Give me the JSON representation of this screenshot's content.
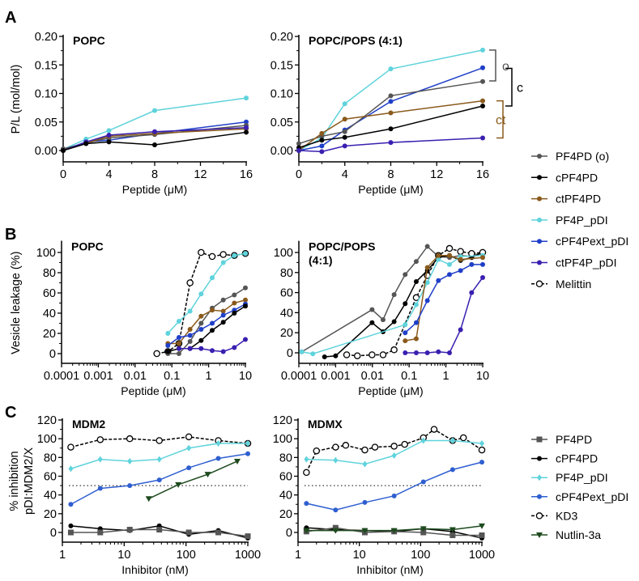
{
  "panels": {
    "a": "A",
    "b": "B",
    "c": "C"
  },
  "colors": {
    "PF4PD": "#555555",
    "cPF4PD": "#000000",
    "ctPF4PD": "#8a5a1c",
    "PF4P_pDI": "#5fd3dc",
    "cPF4Pext_pDI": "#1f3fc8",
    "ctPF4P_pDI": "#3a1fb0",
    "Melittin": "#000000",
    "KD3": "#000000",
    "Nutlin-3a": "#1e4a1e",
    "cPF4Pext_pDI_C": "#2f5fd0"
  },
  "legend_ab": [
    "PF4PD (o)",
    "cPF4PD",
    "ctPF4PD",
    "PF4P_pDI",
    "cPF4Pext_pDI",
    "ctPF4P_pDI",
    "Melittin"
  ],
  "legend_c": [
    "PF4PD",
    "cPF4PD",
    "PF4P_pDI",
    "cPF4Pext_pDI",
    "KD3",
    "Nutlin-3a"
  ],
  "chart_data": [
    {
      "id": "A1",
      "type": "line",
      "title": "POPC",
      "xlabel": "Peptide (μM)",
      "ylabel": "P/L (mol/mol)",
      "xscale": "linear",
      "xlim": [
        0,
        16
      ],
      "ylim": [
        -0.02,
        0.2
      ],
      "xticks": [
        "0",
        "4",
        "8",
        "12",
        "16"
      ],
      "yticks": [
        "0.00",
        "0.05",
        "0.10",
        "0.15",
        "0.20"
      ],
      "x": [
        0,
        2,
        4,
        8,
        16
      ],
      "series": [
        {
          "key": "PF4P_pDI",
          "values": [
            0.002,
            0.02,
            0.035,
            0.07,
            0.092
          ]
        },
        {
          "key": "cPF4Pext_pDI",
          "values": [
            0,
            0.015,
            0.018,
            0.03,
            0.05
          ]
        },
        {
          "key": "PF4PD",
          "values": [
            0.003,
            0.013,
            0.022,
            0.028,
            0.044
          ]
        },
        {
          "key": "ctPF4PD",
          "values": [
            0,
            0.013,
            0.025,
            0.03,
            0.038
          ]
        },
        {
          "key": "ctPF4P_pDI",
          "values": [
            0,
            0.015,
            0.027,
            0.033,
            0.04
          ]
        },
        {
          "key": "cPF4PD",
          "values": [
            0,
            0.012,
            0.015,
            0.01,
            0.032
          ]
        }
      ]
    },
    {
      "id": "A2",
      "type": "line",
      "title": "POPC/POPS (4:1)",
      "xlabel": "Peptide (μM)",
      "ylabel": "",
      "xscale": "linear",
      "xlim": [
        0,
        16
      ],
      "ylim": [
        -0.02,
        0.2
      ],
      "xticks": [
        "0",
        "4",
        "8",
        "12",
        "16"
      ],
      "yticks": [
        "0.00",
        "0.05",
        "0.10",
        "0.15",
        "0.20"
      ],
      "x": [
        0,
        2,
        4,
        8,
        16
      ],
      "series": [
        {
          "key": "PF4P_pDI",
          "values": [
            0,
            0.022,
            0.082,
            0.143,
            0.176
          ]
        },
        {
          "key": "cPF4Pext_pDI",
          "values": [
            0,
            0.008,
            0.036,
            0.086,
            0.145
          ]
        },
        {
          "key": "PF4PD",
          "values": [
            0.012,
            0.025,
            0.033,
            0.096,
            0.121
          ]
        },
        {
          "key": "ctPF4PD",
          "values": [
            0,
            0.03,
            0.055,
            0.066,
            0.087
          ]
        },
        {
          "key": "cPF4PD",
          "values": [
            0.005,
            0.018,
            0.023,
            0.038,
            0.078
          ]
        },
        {
          "key": "ctPF4P_pDI",
          "values": [
            0,
            -0.002,
            0.008,
            0.014,
            0.022
          ]
        }
      ],
      "annotations": [
        "o",
        "c",
        "ct"
      ]
    },
    {
      "id": "B1",
      "type": "line",
      "title": "POPC",
      "xlabel": "Peptide (μM)",
      "ylabel": "Vesicle leakage (%)",
      "xscale": "log",
      "xlim": [
        0.0001,
        10
      ],
      "ylim": [
        -10,
        110
      ],
      "xticks": [
        "0.0001",
        "0.001",
        "0.01",
        "0.1",
        "1",
        "10"
      ],
      "yticks": [
        "0",
        "20",
        "40",
        "60",
        "80",
        "100"
      ],
      "series": [
        {
          "key": "Melittin",
          "x": [
            0.039,
            0.078,
            0.156,
            0.3125,
            0.625,
            1.25,
            2.5,
            5,
            10
          ],
          "values": [
            0,
            2,
            10,
            70,
            100,
            96,
            98,
            97,
            99
          ]
        },
        {
          "key": "PF4P_pDI",
          "x": [
            0.078,
            0.156,
            0.3125,
            0.625,
            1.25,
            2.5,
            5,
            10
          ],
          "values": [
            20,
            32,
            42,
            59,
            75,
            90,
            97,
            99
          ]
        },
        {
          "key": "PF4PD",
          "x": [
            0.078,
            0.156,
            0.3125,
            0.625,
            1.25,
            2.5,
            5,
            10
          ],
          "values": [
            0,
            0,
            12,
            30,
            45,
            53,
            58,
            65
          ]
        },
        {
          "key": "ctPF4PD",
          "x": [
            0.078,
            0.156,
            0.3125,
            0.625,
            1.25,
            2.5,
            5,
            10
          ],
          "values": [
            10,
            10,
            24,
            37,
            43,
            42,
            50,
            53
          ]
        },
        {
          "key": "cPF4Pext_pDI",
          "x": [
            0.078,
            0.156,
            0.3125,
            0.625,
            1.25,
            2.5,
            5,
            10
          ],
          "values": [
            8,
            16,
            18,
            24,
            30,
            38,
            43,
            49
          ]
        },
        {
          "key": "cPF4PD",
          "x": [
            0.078,
            0.156,
            0.3125,
            0.625,
            1.25,
            2.5,
            5,
            10
          ],
          "values": [
            2,
            5,
            5,
            13,
            23,
            31,
            40,
            47
          ]
        },
        {
          "key": "ctPF4P_pDI",
          "x": [
            0.156,
            0.3125,
            0.625,
            1.25,
            2.5,
            5,
            10
          ],
          "values": [
            5,
            5,
            5,
            3,
            2,
            6,
            14
          ]
        }
      ]
    },
    {
      "id": "B2",
      "type": "line",
      "title": "POPC/POPS",
      "title2": "(4:1)",
      "xlabel": "Peptide (μM)",
      "ylabel": "",
      "xscale": "log",
      "xlim": [
        0.0001,
        10
      ],
      "ylim": [
        -10,
        110
      ],
      "xticks": [
        "0.0001",
        "0.001",
        "0.01",
        "0.1",
        "1",
        "10"
      ],
      "yticks": [
        "0",
        "20",
        "40",
        "60",
        "80",
        "100"
      ],
      "series": [
        {
          "key": "PF4PD",
          "x": [
            0.00012,
            0.0098,
            0.0195,
            0.039,
            0.078,
            0.156,
            0.3125,
            0.625,
            1.25,
            2.5,
            5,
            10
          ],
          "values": [
            1,
            43,
            33,
            58,
            78,
            91,
            106,
            96,
            95,
            97,
            96,
            101
          ]
        },
        {
          "key": "cPF4PD",
          "x": [
            0.0005,
            0.001,
            0.0098,
            0.0195,
            0.039,
            0.078,
            0.156,
            0.3125,
            0.625,
            1.25,
            2.5,
            5,
            10
          ],
          "values": [
            -4,
            -3,
            30,
            21,
            31,
            49,
            71,
            82,
            95,
            97,
            92,
            95,
            100
          ]
        },
        {
          "key": "Melittin",
          "x": [
            0.002,
            0.0039,
            0.0098,
            0.0195,
            0.039,
            0.156,
            0.3125,
            0.625,
            1.25,
            2.5,
            5,
            10
          ],
          "values": [
            -2,
            -3,
            -2,
            -2,
            3,
            55,
            77,
            97,
            104,
            101,
            99,
            100
          ]
        },
        {
          "key": "PF4P_pDI",
          "x": [
            0.00012,
            0.00024,
            0.078,
            0.156,
            0.3125,
            0.625,
            1.25,
            2.5,
            10
          ],
          "values": [
            1,
            -1,
            28,
            48,
            70,
            93,
            88,
            96,
            97
          ]
        },
        {
          "key": "ctPF4PD",
          "x": [
            0.078,
            0.156,
            0.3125,
            0.625,
            1.25,
            2.5,
            10
          ],
          "values": [
            12,
            14,
            85,
            97,
            97,
            93,
            95
          ]
        },
        {
          "key": "cPF4Pext_pDI",
          "x": [
            0.078,
            0.156,
            0.3125,
            0.625,
            1.25,
            2.5,
            5,
            10
          ],
          "values": [
            20,
            30,
            52,
            72,
            78,
            82,
            88,
            88
          ]
        },
        {
          "key": "ctPF4P_pDI",
          "x": [
            0.078,
            0.156,
            0.3125,
            0.625,
            1.25,
            2.5,
            5,
            10
          ],
          "values": [
            0,
            0,
            0,
            1,
            0,
            23,
            60,
            75
          ]
        }
      ]
    },
    {
      "id": "C1",
      "type": "line",
      "title": "MDM2",
      "xlabel": "Inhibitor (nM)",
      "ylabel": "% inhibition",
      "ylabel2": "pDI:MDM2/X",
      "xscale": "log",
      "xlim": [
        1,
        1000
      ],
      "ylim": [
        -10,
        120
      ],
      "xticks": [
        "1",
        "10",
        "100",
        "1000"
      ],
      "yticks": [
        "0",
        "20",
        "40",
        "60",
        "80",
        "100",
        "120"
      ],
      "reference_line": 50,
      "series": [
        {
          "key": "KD3",
          "x": [
            1.37,
            4.1,
            12.3,
            37,
            111,
            333,
            1000
          ],
          "values": [
            91,
            99,
            100,
            98,
            102,
            98,
            95
          ]
        },
        {
          "key": "PF4P_pDI",
          "x": [
            1.37,
            4.1,
            12.3,
            37,
            111,
            333,
            1000
          ],
          "values": [
            68,
            78,
            76,
            78,
            90,
            95,
            95
          ]
        },
        {
          "key": "cPF4Pext_pDI",
          "x": [
            1.37,
            4.1,
            12.3,
            37,
            111,
            333,
            1000
          ],
          "values": [
            30,
            47,
            50,
            56,
            69,
            79,
            84
          ]
        },
        {
          "key": "Nutlin-3a",
          "x": [
            25,
            75,
            225,
            675
          ],
          "values": [
            36,
            51,
            62,
            76
          ]
        },
        {
          "key": "cPF4PD",
          "x": [
            1.37,
            4.1,
            12.3,
            37,
            111,
            333,
            1000
          ],
          "values": [
            7,
            4,
            2,
            7,
            -2,
            2,
            -6
          ]
        },
        {
          "key": "PF4PD",
          "x": [
            1.37,
            4.1,
            12.3,
            37,
            111,
            333,
            1000
          ],
          "values": [
            0,
            0,
            3,
            3,
            0,
            0,
            -4
          ]
        }
      ]
    },
    {
      "id": "C2",
      "type": "line",
      "title": "MDMX",
      "xlabel": "Inhibitor (nM)",
      "ylabel": "",
      "xscale": "log",
      "xlim": [
        1,
        1000
      ],
      "ylim": [
        -10,
        120
      ],
      "xticks": [
        "1",
        "10",
        "100",
        "1000"
      ],
      "yticks": [
        "0",
        "20",
        "40",
        "60",
        "80",
        "100",
        "120"
      ],
      "reference_line": 50,
      "series": [
        {
          "key": "KD3",
          "x": [
            1.37,
            2,
            4.1,
            6,
            12.3,
            18,
            37,
            55,
            111,
            166,
            333,
            500,
            1000
          ],
          "values": [
            64,
            87,
            91,
            93,
            88,
            91,
            92,
            94,
            101,
            110,
            98,
            101,
            88
          ]
        },
        {
          "key": "PF4P_pDI",
          "x": [
            1.37,
            4.1,
            12.3,
            37,
            111,
            333,
            1000
          ],
          "values": [
            78,
            77,
            73,
            82,
            98,
            98,
            95
          ]
        },
        {
          "key": "cPF4Pext_pDI",
          "x": [
            1.37,
            4.1,
            12.3,
            37,
            111,
            333,
            1000
          ],
          "values": [
            31,
            24,
            32,
            39,
            54,
            67,
            75
          ]
        },
        {
          "key": "cPF4PD",
          "x": [
            1.37,
            4.1,
            12.3,
            37,
            111,
            333,
            1000
          ],
          "values": [
            5,
            3,
            2,
            1,
            4,
            1,
            -6
          ]
        },
        {
          "key": "PF4PD",
          "x": [
            1.37,
            4.1,
            12.3,
            37,
            111,
            333,
            1000
          ],
          "values": [
            1,
            5,
            0,
            1,
            0,
            -3,
            -3
          ]
        },
        {
          "key": "Nutlin-3a",
          "x": [
            1.37,
            4.1,
            12.3,
            37,
            111,
            333,
            1000
          ],
          "values": [
            2,
            2,
            2,
            2,
            4,
            3,
            7
          ]
        }
      ]
    }
  ]
}
